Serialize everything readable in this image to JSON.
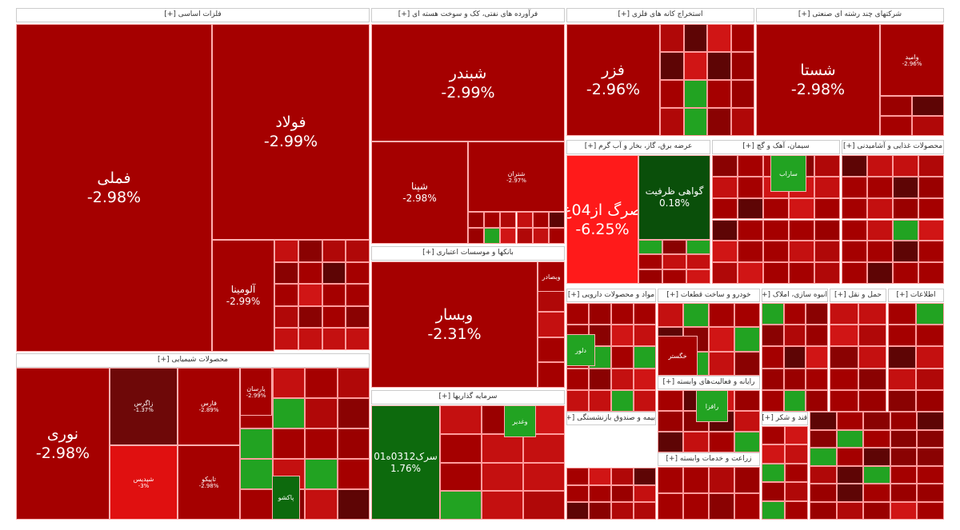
{
  "colors": {
    "red": "#a50000",
    "bright_red": "#ff1a1a",
    "dark_green": "#0a5a0a",
    "green": "#22a322",
    "maroon": "#5e0505"
  },
  "sectors": [
    {
      "title": "فلزات اساسی [+]"
    },
    {
      "title": "فرآورده های نفتی، کک و سوخت هسته ای [+]"
    },
    {
      "title": "استخراج کانه های فلزی [+]"
    },
    {
      "title": "شرکتهای چند رشته ای صنعتی [+]"
    },
    {
      "title": "عرضه برق، گاز، بخار و آب گرم [+]"
    },
    {
      "title": "سیمان، آهک و گچ [+]"
    },
    {
      "title": "محصولات غذایی و آشامیدنی [+]"
    },
    {
      "title": "بانکها و موسسات اعتباری [+]"
    },
    {
      "title": "محصولات شیمیایی [+]"
    },
    {
      "title": "سرمایه گذاریها [+]"
    },
    {
      "title": "مواد و محصولات دارویی [+]"
    },
    {
      "title": "خودرو و ساخت قطعات [+]"
    },
    {
      "title": "انبوه سازی، املاک [+]"
    },
    {
      "title": "حمل و نقل [+]"
    },
    {
      "title": "اطلاعات [+]"
    },
    {
      "title": "رایانه و فعالیت‌های وابسته [+]"
    },
    {
      "title": "بیمه و صندوق بازنشستگی [+]"
    },
    {
      "title": "زراعت و خدمات وابسته [+]"
    },
    {
      "title": "قند و شکر [+]"
    }
  ],
  "tiles": [
    {
      "name": "فملی",
      "pct": "-2.98%"
    },
    {
      "name": "فولاد",
      "pct": "-2.99%"
    },
    {
      "name": "آلومینا",
      "pct": "-2.99%"
    },
    {
      "name": "نوری",
      "pct": "-2.98%"
    },
    {
      "name": "زاگرس",
      "pct": "-1.37%"
    },
    {
      "name": "شپدیس",
      "pct": "-3%"
    },
    {
      "name": "فارس",
      "pct": "-2.89%"
    },
    {
      "name": "تاپیکو",
      "pct": "-2.98%"
    },
    {
      "name": "شبندر",
      "pct": "-2.99%"
    },
    {
      "name": "شپنا",
      "pct": "-2.98%"
    },
    {
      "name": "شتران",
      "pct": "-2.97%"
    },
    {
      "name": "وبسار",
      "pct": "-2.31%"
    },
    {
      "name": "سرک0312ه01",
      "pct": "1.76%"
    },
    {
      "name": "فزر",
      "pct": "-2.96%"
    },
    {
      "name": "شستا",
      "pct": "-2.98%"
    },
    {
      "name": "وامید",
      "pct": "-2.96%"
    },
    {
      "name": "صرگ از04ع",
      "pct": "-6.25%"
    },
    {
      "name": "گواهی ظرفیت",
      "pct": "0.18%"
    },
    {
      "name": "پارسان",
      "pct": "-2.99%"
    },
    {
      "name": "ساراب",
      "pct": ""
    },
    {
      "name": "خگستر",
      "pct": ""
    },
    {
      "name": "دلور",
      "pct": ""
    },
    {
      "name": "رافزا",
      "pct": ""
    },
    {
      "name": "وبصادر",
      "pct": ""
    },
    {
      "name": "وغدیر",
      "pct": ""
    },
    {
      "name": "پاکشو",
      "pct": ""
    }
  ]
}
